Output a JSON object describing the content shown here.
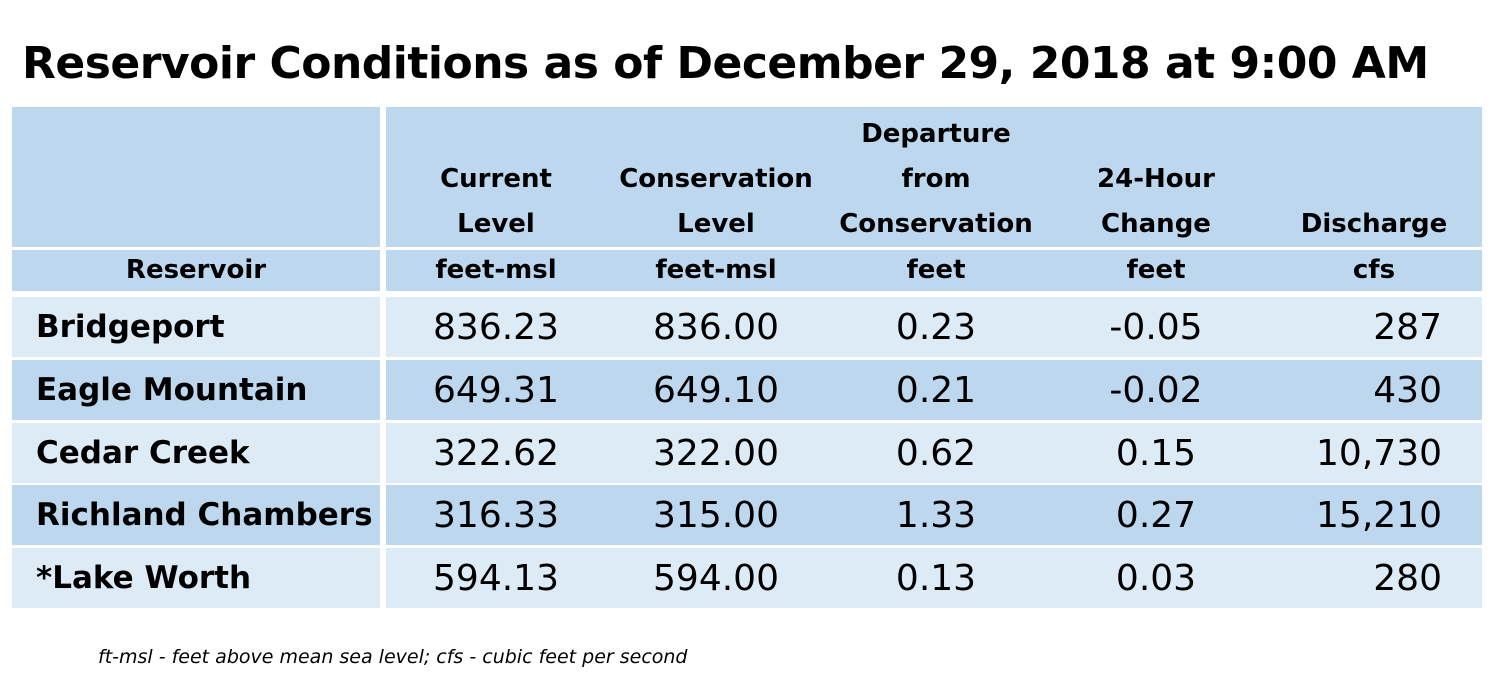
{
  "title": "Reservoir Conditions as of December 29, 2018 at 9:00 AM",
  "table": {
    "headers": {
      "reservoir": "Reservoir",
      "current_level": "Current Level",
      "conservation_level": "Conservation Level",
      "departure": "Departure from Conservation",
      "change_24h": "24-Hour Change",
      "discharge": "Discharge"
    },
    "header_lines": {
      "current_level": [
        "Current",
        "Level"
      ],
      "conservation_level": [
        "Conservation",
        "Level"
      ],
      "departure": [
        "Departure",
        "from",
        "Conservation"
      ],
      "change_24h": [
        "24-Hour",
        "Change"
      ],
      "discharge": [
        "Discharge"
      ]
    },
    "units": {
      "current_level": "feet-msl",
      "conservation_level": "feet-msl",
      "departure": "feet",
      "change_24h": "feet",
      "discharge": "cfs"
    },
    "rows": [
      {
        "reservoir": "Bridgeport",
        "current_level": "836.23",
        "conservation_level": "836.00",
        "departure": "0.23",
        "change_24h": "-0.05",
        "discharge": "287"
      },
      {
        "reservoir": "Eagle Mountain",
        "current_level": "649.31",
        "conservation_level": "649.10",
        "departure": "0.21",
        "change_24h": "-0.02",
        "discharge": "430"
      },
      {
        "reservoir": "Cedar Creek",
        "current_level": "322.62",
        "conservation_level": "322.00",
        "departure": "0.62",
        "change_24h": "0.15",
        "discharge": "10,730"
      },
      {
        "reservoir": "Richland Chambers",
        "current_level": "316.33",
        "conservation_level": "315.00",
        "departure": "1.33",
        "change_24h": "0.27",
        "discharge": "15,210"
      },
      {
        "reservoir": "*Lake Worth",
        "current_level": "594.13",
        "conservation_level": "594.00",
        "departure": "0.13",
        "change_24h": "0.03",
        "discharge": "280"
      }
    ]
  },
  "footnote": "ft-msl - feet above mean sea level; cfs - cubic feet per second",
  "colors": {
    "header_bg": "#bdd7ee",
    "row_light": "#ddebf7",
    "row_dark": "#bdd7ee"
  }
}
